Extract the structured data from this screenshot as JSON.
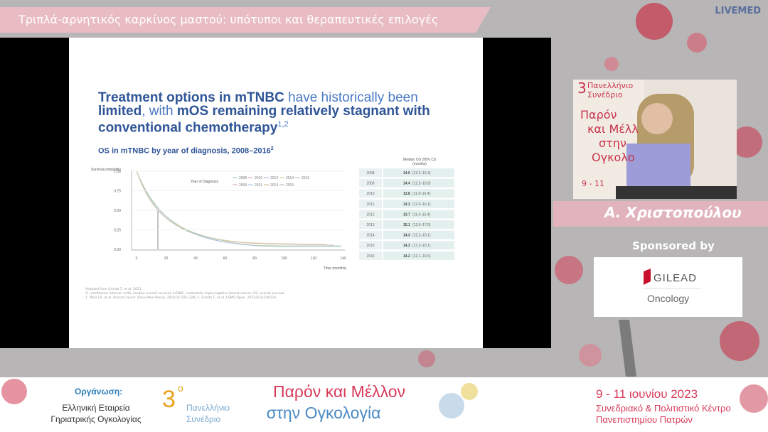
{
  "header": {
    "title": "Τριπλά-αρνητικός καρκίνος μαστού: υπότυποι και θεραπευτικές επιλογές",
    "brand": "LIVEMED"
  },
  "slide": {
    "headline": [
      "Treatment options in mTNBC",
      " have historically been ",
      "limited",
      ", with ",
      "mOS remaining relatively stagnant with conventional chemotherapy",
      "1,2"
    ],
    "subtitle": "OS in mTNBC by year of diagnosis, 2008–2016",
    "subtitle_ref": "2",
    "y_axis_label": "Survival probability",
    "y_ticks": [
      "1.00",
      "0.75",
      "0.50",
      "0.25",
      "0.00"
    ],
    "x_ticks": [
      "0",
      "20",
      "40",
      "60",
      "80",
      "100",
      "120",
      "140"
    ],
    "x_axis_label": "Time (months)",
    "legend_title": "Year of Diagnosis",
    "legend_years": [
      "2008",
      "2010",
      "2012",
      "2014",
      "2016",
      "2009",
      "2011",
      "2013",
      "2015"
    ],
    "table_header": [
      "Median OS (95% CI)",
      "(months)"
    ],
    "table_rows": [
      [
        "2008",
        "14.0",
        "(12.3–15.3)"
      ],
      [
        "2009",
        "14.4",
        "(12.2–16.8)"
      ],
      [
        "2010",
        "13.8",
        "(11.9–16.4)"
      ],
      [
        "2011",
        "14.2",
        "(12.0–16.1)"
      ],
      [
        "2012",
        "13.7",
        "(11.4–16.4)"
      ],
      [
        "2013",
        "15.1",
        "(12.9–17.6)"
      ],
      [
        "2014",
        "14.3",
        "(13.2–18.1)"
      ],
      [
        "2015",
        "14.3",
        "(13.2–18.1)"
      ],
      [
        "2016",
        "14.2",
        "(12.1–16.5)"
      ]
    ],
    "footnotes": [
      "Adapted from Grinda T, et al. 2021.",
      "CI, confidence interval; mOS, median overall survival; mTNBC, metastatic triple-negative breast cancer; OS, overall survival.",
      "1. Mina LA, et al. Breast Cancer (Dove Med Press). 2019;11:221–228; 2. Grinda T, et al. ESMO Open. 2021;6(3):100114."
    ]
  },
  "video": {
    "banner": [
      "3",
      "Πανελλήνιο",
      "Συνέδριο",
      "Παρόν",
      "και Μέλλ",
      "στην",
      "Ογκολο",
      "9 - 11"
    ]
  },
  "speaker": "Α. Χριστοπούλου",
  "sponsor": {
    "label": "Sponsored by",
    "name": "GILEAD",
    "division": "Oncology"
  },
  "footer": {
    "organizer_label": "Οργάνωση:",
    "organizer": [
      "Ελληνική Εταιρεία",
      "Γηριατρικής Ογκολογίας"
    ],
    "edition": "3",
    "edition_suffix": "ο",
    "congress": [
      "Πανελλήνιο",
      "Συνέδριο"
    ],
    "theme": [
      "Παρόν και Μέλλον",
      "στην Ογκολογία"
    ],
    "dates": "9 - 11 ιουνίου 2023",
    "venue": [
      "Συνεδριακό & Πολιτιστικό Κέντρο",
      "Πανεπιστημίου Πατρών"
    ]
  }
}
